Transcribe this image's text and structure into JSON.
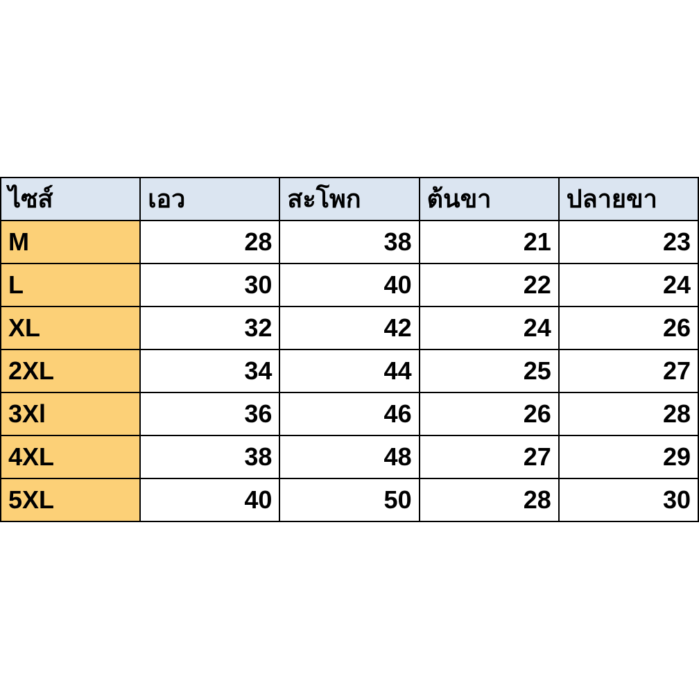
{
  "table": {
    "type": "table",
    "header_bg": "#dbe5f1",
    "size_col_bg": "#fcd077",
    "data_bg": "#ffffff",
    "border_color": "#000000",
    "font_weight": 700,
    "font_size_pt": 27,
    "columns": [
      "ไซส์",
      "เอว",
      "สะโพก",
      "ต้นขา",
      "ปลายขา"
    ],
    "rows": [
      {
        "size": "M",
        "waist": 28,
        "hip": 38,
        "thigh": 21,
        "hem": 23
      },
      {
        "size": "L",
        "waist": 30,
        "hip": 40,
        "thigh": 22,
        "hem": 24
      },
      {
        "size": "XL",
        "waist": 32,
        "hip": 42,
        "thigh": 24,
        "hem": 26
      },
      {
        "size": "2XL",
        "waist": 34,
        "hip": 44,
        "thigh": 25,
        "hem": 27
      },
      {
        "size": "3Xl",
        "waist": 36,
        "hip": 46,
        "thigh": 26,
        "hem": 28
      },
      {
        "size": "4XL",
        "waist": 38,
        "hip": 48,
        "thigh": 27,
        "hem": 29
      },
      {
        "size": "5XL",
        "waist": 40,
        "hip": 50,
        "thigh": 28,
        "hem": 30
      }
    ]
  }
}
